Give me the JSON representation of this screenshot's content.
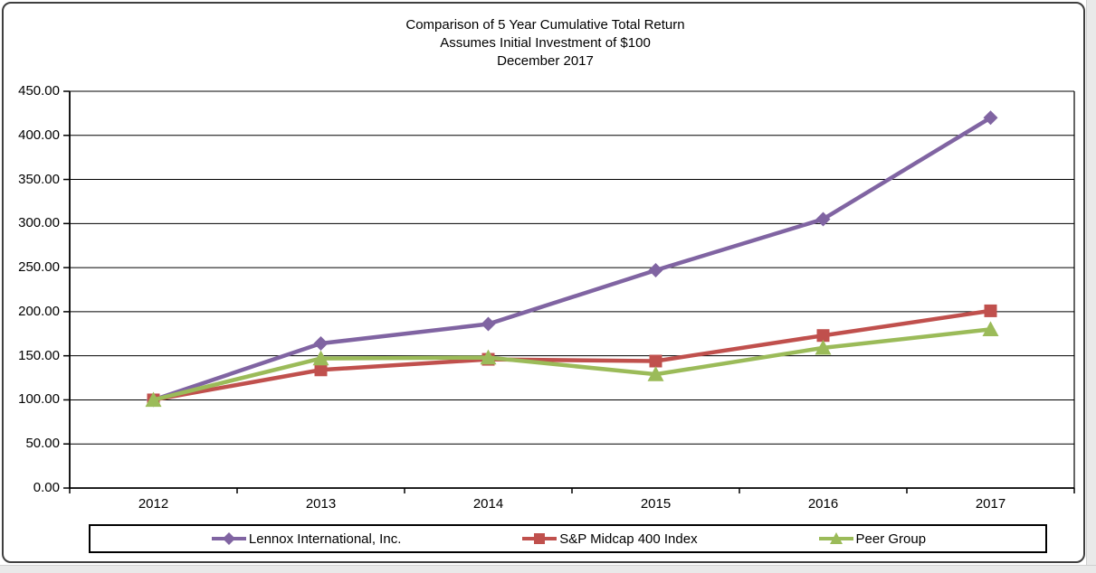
{
  "title": {
    "line1": "Comparison of 5 Year Cumulative Total Return",
    "line2": "Assumes Initial Investment of $100",
    "line3": "December 2017"
  },
  "chart_data": {
    "type": "line",
    "title": "Comparison of 5 Year Cumulative Total Return",
    "subtitle": "Assumes Initial Investment of $100",
    "date_label": "December 2017",
    "categories": [
      "2012",
      "2013",
      "2014",
      "2015",
      "2016",
      "2017"
    ],
    "series": [
      {
        "name": "Lennox International, Inc.",
        "marker": "diamond",
        "color": "#8064A2",
        "values": [
          100,
          164,
          186,
          247,
          305,
          420
        ]
      },
      {
        "name": "S&P Midcap 400 Index",
        "marker": "square",
        "color": "#C0504D",
        "values": [
          100,
          134,
          146,
          144,
          173,
          201
        ]
      },
      {
        "name": "Peer Group",
        "marker": "triangle",
        "color": "#9BBB59",
        "values": [
          100,
          147,
          148,
          129,
          159,
          180
        ]
      }
    ],
    "ylim": [
      0,
      450
    ],
    "y_tick_step": 50,
    "y_tick_labels": [
      "0.00",
      "50.00",
      "100.00",
      "150.00",
      "200.00",
      "250.00",
      "300.00",
      "350.00",
      "400.00",
      "450.00"
    ],
    "grid": "horizontal",
    "gridline_color": "#000000",
    "axis_color": "#000000",
    "legend_position": "bottom"
  },
  "colors": {
    "background": "#ffffff",
    "frame_border": "#3f3f3f",
    "legend_border": "#000000",
    "text": "#000000"
  }
}
